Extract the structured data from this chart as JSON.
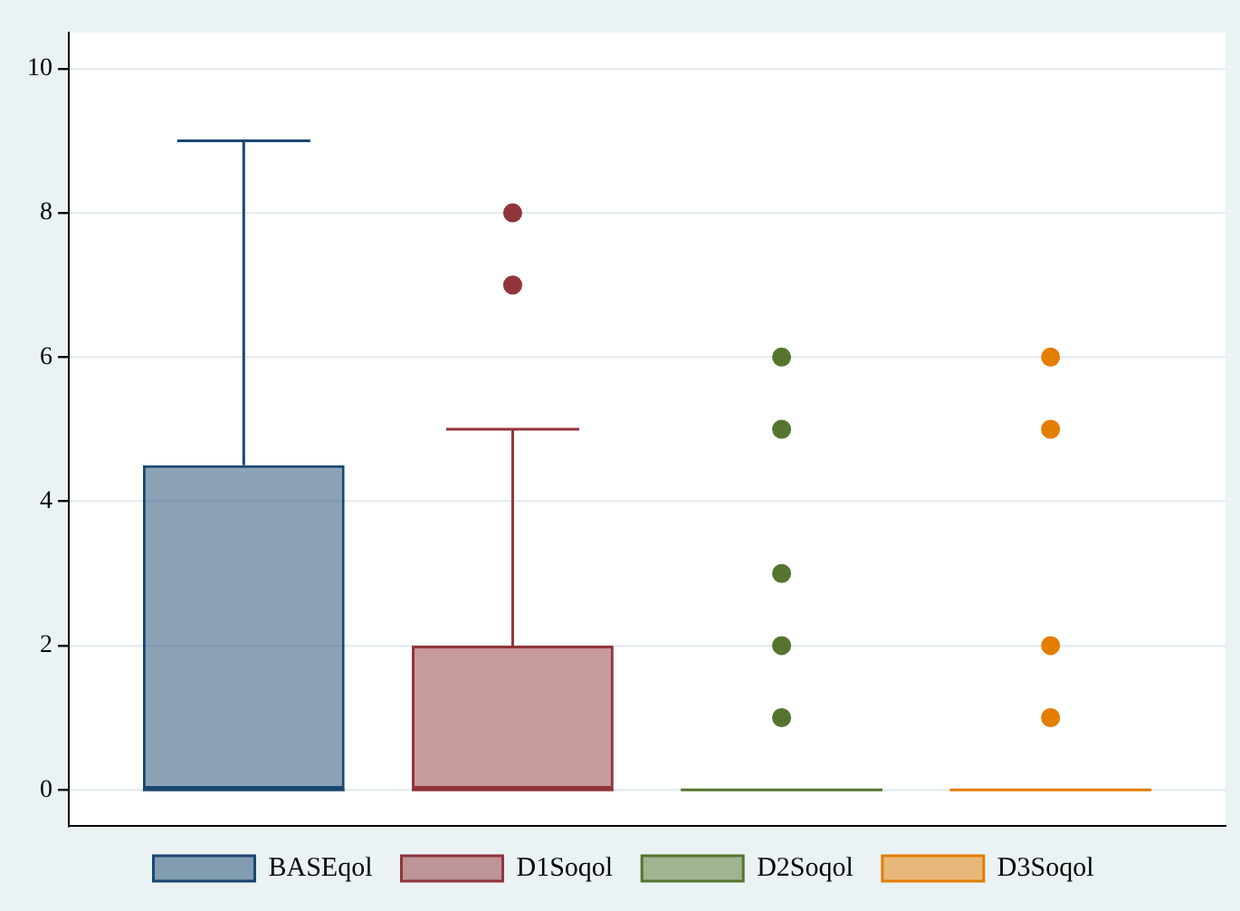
{
  "chart_data": {
    "type": "box",
    "categories": [
      null
    ],
    "series": [
      {
        "name": "BASEqol",
        "color": "#1a476f",
        "boxes": [
          {
            "low": 0,
            "q1": 0,
            "median": 0,
            "q3": 4.5,
            "high": 9
          }
        ]
      },
      {
        "name": "D1Soqol",
        "color": "#90353b",
        "boxes": [
          {
            "low": 0,
            "q1": 0,
            "median": 0,
            "q3": 2,
            "high": 5,
            "outliers": [
              7,
              8
            ]
          }
        ]
      },
      {
        "name": "D2Soqol",
        "color": "#55752f",
        "boxes": [
          {
            "low": 0,
            "q1": 0,
            "median": 0,
            "q3": 0,
            "high": 0,
            "outliers": [
              1,
              2,
              3,
              5,
              6
            ]
          }
        ]
      },
      {
        "name": "D3Soqol",
        "color": "#e37e00",
        "boxes": [
          {
            "low": 0,
            "q1": 0,
            "median": 0,
            "q3": 0,
            "high": 0,
            "outliers": [
              1,
              2,
              5,
              6
            ]
          }
        ]
      }
    ],
    "ylim": [
      -0.5,
      10.5
    ],
    "yticks": [
      0,
      2,
      4,
      6,
      8,
      10
    ],
    "grid": "y",
    "legend": "bottom",
    "tick_labels": "y",
    "marker": "circle"
  }
}
